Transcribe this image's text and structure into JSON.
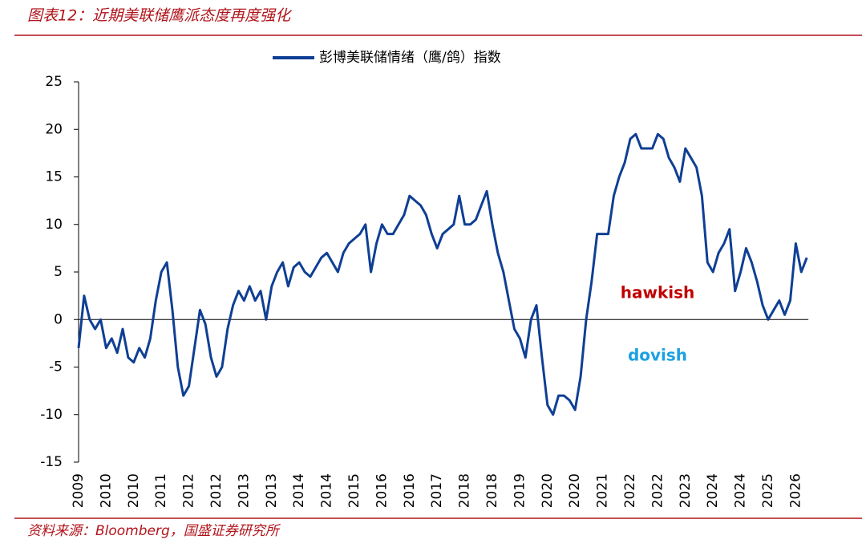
{
  "title": "图表12：近期美联储鹰派态度再度强化",
  "source": "资料来源：Bloomberg，国盛证券研究所",
  "chart_data": {
    "type": "line",
    "categories": [
      "2009",
      null,
      null,
      null,
      null,
      "2010",
      null,
      null,
      null,
      null,
      "2010",
      null,
      null,
      null,
      null,
      "2011",
      null,
      null,
      null,
      null,
      "2012",
      null,
      null,
      null,
      null,
      "2012",
      null,
      null,
      null,
      null,
      "2013",
      null,
      null,
      null,
      null,
      "2013",
      null,
      null,
      null,
      null,
      "2014",
      null,
      null,
      null,
      null,
      "2014",
      null,
      null,
      null,
      null,
      "2015",
      null,
      null,
      null,
      null,
      "2016",
      null,
      null,
      null,
      null,
      "2016",
      null,
      null,
      null,
      null,
      "2017",
      null,
      null,
      null,
      null,
      "2018",
      null,
      null,
      null,
      null,
      "2018",
      null,
      null,
      null,
      null,
      "2019",
      null,
      null,
      null,
      null,
      "2020",
      null,
      null,
      null,
      null,
      "2020",
      null,
      null,
      null,
      null,
      "2021",
      null,
      null,
      null,
      null,
      "2022",
      null,
      null,
      null,
      null,
      "2022",
      null,
      null,
      null,
      null,
      "2023",
      null,
      null,
      null,
      null,
      "2024",
      null,
      null,
      null,
      null,
      "2024",
      null,
      null,
      null,
      null,
      "2025",
      null,
      null,
      null,
      null,
      "2026",
      null,
      null
    ],
    "series": [
      {
        "name": "彭博美联储情绪（鹰/鸽）指数",
        "color": "#0f3f94",
        "values": [
          -3,
          2.5,
          0,
          -1,
          0,
          -3,
          -2,
          -3.5,
          -1,
          -4,
          -4.5,
          -3,
          -4,
          -2,
          2,
          5,
          6,
          1,
          -5,
          -8,
          -7,
          -3,
          1,
          -0.5,
          -4,
          -6,
          -5,
          -1,
          1.5,
          3,
          2,
          3.5,
          2,
          3,
          0,
          3.5,
          5,
          6,
          3.5,
          5.5,
          6,
          5,
          4.5,
          5.5,
          6.5,
          7,
          6,
          5,
          7,
          8,
          8.5,
          9,
          10,
          5,
          8,
          10,
          9,
          9,
          10,
          11,
          13,
          12.5,
          12,
          11,
          9,
          7.5,
          9,
          9.5,
          10,
          13,
          10,
          10,
          10.5,
          12,
          13.5,
          10,
          7,
          5,
          2,
          -1,
          -2,
          -4,
          0,
          1.5,
          -4,
          -9,
          -10,
          -8,
          -8,
          -8.5,
          -9.5,
          -6,
          0,
          4,
          9,
          9,
          9,
          13,
          15,
          16.5,
          19,
          19.5,
          18,
          18,
          18,
          19.5,
          19,
          17,
          16,
          14.5,
          18,
          17,
          16,
          13,
          6,
          5,
          7,
          8,
          9.5,
          3,
          5,
          7.5,
          6,
          4,
          1.5,
          0,
          1,
          2,
          0.5,
          2,
          8,
          5,
          6.5
        ]
      }
    ],
    "ylim": [
      -15,
      25
    ],
    "yticks": [
      -15,
      -10,
      -5,
      0,
      5,
      10,
      15,
      20,
      25
    ],
    "annotations": [
      {
        "text": "hawkish",
        "color": "#c00000"
      },
      {
        "text": "dovish",
        "color": "#1ba1e2"
      }
    ]
  }
}
